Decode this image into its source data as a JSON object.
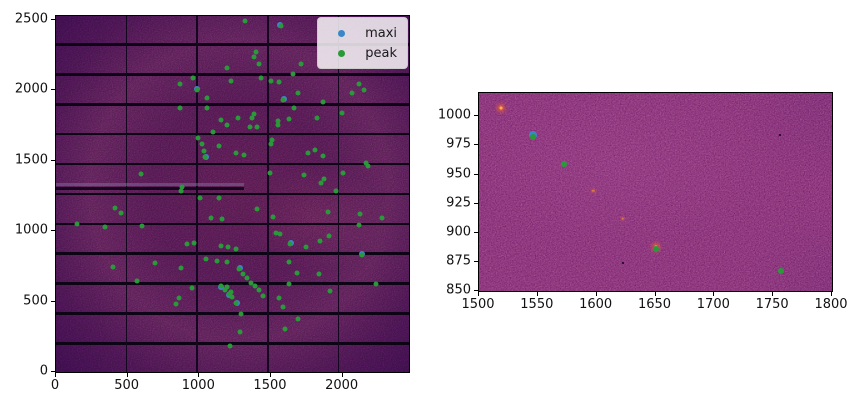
{
  "figure": {
    "background": "#ffffff"
  },
  "colors": {
    "maxi": "#3a87c8",
    "peak": "#2a9939",
    "detector_base": "#4b1161",
    "detector_glow": "#c65a92",
    "zoom_base": "#8c3173",
    "gap_line": "#0d0515",
    "hotspot": "#ffb347"
  },
  "chart_data": [
    {
      "id": "left",
      "type": "scatter",
      "title": "",
      "xlabel": "",
      "ylabel": "",
      "xlim": [
        0,
        2463
      ],
      "ylim": [
        0,
        2527
      ],
      "xticks": [
        0,
        500,
        1000,
        1500,
        2000
      ],
      "yticks": [
        0,
        500,
        1000,
        1500,
        2000,
        2500
      ],
      "grid": false,
      "aspect": "equal",
      "legend": {
        "position": "upper right",
        "entries": [
          {
            "label": "maxi",
            "color": "#3a87c8"
          },
          {
            "label": "peak",
            "color": "#2a9939"
          }
        ]
      },
      "image": {
        "description": "pilatus-detector-frame",
        "module_gaps": {
          "horizontal_y": [
            204,
            416,
            628,
            840,
            1052,
            1264,
            1476,
            1688,
            1900,
            2112,
            2324
          ],
          "vertical_x": [
            490,
            984,
            1478,
            1972
          ]
        },
        "dead_band": {
          "x": [
            0,
            1310
          ],
          "y": [
            1292,
            1345
          ]
        }
      },
      "series": [
        {
          "name": "maxi",
          "color": "#3a87c8",
          "marker_px": 6,
          "points": [
            [
              981,
              2006
            ],
            [
              1565,
              2462
            ],
            [
              2138,
              836
            ],
            [
              1261,
              490
            ],
            [
              1588,
              1938
            ],
            [
              1045,
              1527
            ],
            [
              1637,
              913
            ],
            [
              1282,
              737
            ],
            [
              1152,
              600
            ],
            [
              1208,
              546
            ]
          ]
        },
        {
          "name": "peak",
          "color": "#2a9939",
          "marker_px": 5,
          "points": [
            [
              863,
              2047
            ],
            [
              953,
              2089
            ],
            [
              981,
              2004
            ],
            [
              1190,
              2160
            ],
            [
              1224,
              2068
            ],
            [
              1057,
              1948
            ],
            [
              1057,
              1877
            ],
            [
              863,
              1877
            ],
            [
              1148,
              1786
            ],
            [
              1196,
              1750
            ],
            [
              1092,
              1701
            ],
            [
              988,
              1659
            ],
            [
              1022,
              1616
            ],
            [
              1134,
              1602
            ],
            [
              1036,
              1567
            ],
            [
              1043,
              1524
            ],
            [
              591,
              1404
            ],
            [
              876,
              1313
            ],
            [
              1322,
              2490
            ],
            [
              1572,
              2456
            ],
            [
              1398,
              2273
            ],
            [
              1384,
              2237
            ],
            [
              1419,
              2188
            ],
            [
              1711,
              2188
            ],
            [
              1433,
              2089
            ],
            [
              1655,
              2117
            ],
            [
              1503,
              2068
            ],
            [
              1558,
              2061
            ],
            [
              2115,
              2047
            ],
            [
              2149,
              2004
            ],
            [
              2066,
              1983
            ],
            [
              1690,
              1983
            ],
            [
              1586,
              1934
            ],
            [
              1864,
              1920
            ],
            [
              1663,
              1877
            ],
            [
              1384,
              1828
            ],
            [
              1273,
              1800
            ],
            [
              1370,
              1800
            ],
            [
              1551,
              1779
            ],
            [
              1628,
              1793
            ],
            [
              1823,
              1800
            ],
            [
              1996,
              1842
            ],
            [
              1405,
              1736
            ],
            [
              1356,
              1736
            ],
            [
              1551,
              1750
            ],
            [
              1509,
              1644
            ],
            [
              1503,
              1616
            ],
            [
              1809,
              1574
            ],
            [
              1760,
              1553
            ],
            [
              1864,
              1531
            ],
            [
              1315,
              1539
            ],
            [
              1259,
              1553
            ],
            [
              2163,
              1482
            ],
            [
              2177,
              1461
            ],
            [
              1496,
              1411
            ],
            [
              1732,
              1397
            ],
            [
              1871,
              1369
            ],
            [
              1850,
              1341
            ],
            [
              2004,
              1411
            ],
            [
              870,
              1284
            ],
            [
              1002,
              1235
            ],
            [
              1134,
              1235
            ],
            [
              410,
              1164
            ],
            [
              452,
              1129
            ],
            [
              146,
              1052
            ],
            [
              341,
              1030
            ],
            [
              598,
              1037
            ],
            [
              1078,
              1094
            ],
            [
              1155,
              1087
            ],
            [
              911,
              910
            ],
            [
              960,
              917
            ],
            [
              1148,
              896
            ],
            [
              1203,
              889
            ],
            [
              1050,
              805
            ],
            [
              1120,
              790
            ],
            [
              1196,
              783
            ],
            [
              397,
              748
            ],
            [
              689,
              776
            ],
            [
              870,
              741
            ],
            [
              563,
              649
            ],
            [
              946,
              593
            ],
            [
              1190,
              600
            ],
            [
              1224,
              565
            ],
            [
              856,
              522
            ],
            [
              835,
              480
            ],
            [
              1217,
              184
            ],
            [
              1955,
              1284
            ],
            [
              1405,
              1157
            ],
            [
              1899,
              1136
            ],
            [
              2122,
              1122
            ],
            [
              2275,
              1094
            ],
            [
              1516,
              1101
            ],
            [
              2115,
              1045
            ],
            [
              1537,
              988
            ],
            [
              1565,
              981
            ],
            [
              1635,
              910
            ],
            [
              1843,
              932
            ],
            [
              1906,
              967
            ],
            [
              1746,
              889
            ],
            [
              1259,
              875
            ],
            [
              2136,
              833
            ],
            [
              1628,
              783
            ],
            [
              1280,
              734
            ],
            [
              1308,
              699
            ],
            [
              1336,
              670
            ],
            [
              1684,
              706
            ],
            [
              1837,
              699
            ],
            [
              1628,
              628
            ],
            [
              2233,
              628
            ],
            [
              1363,
              635
            ],
            [
              1391,
              607
            ],
            [
              1419,
              579
            ],
            [
              1447,
              536
            ],
            [
              1558,
              522
            ],
            [
              1913,
              572
            ],
            [
              1259,
              487
            ],
            [
              1586,
              459
            ],
            [
              1294,
              409
            ],
            [
              1690,
              374
            ],
            [
              1287,
              282
            ],
            [
              1600,
              303
            ],
            [
              1148,
              607
            ],
            [
              1176,
              579
            ],
            [
              1204,
              551
            ],
            [
              1231,
              529
            ]
          ]
        }
      ]
    },
    {
      "id": "right",
      "type": "scatter",
      "title": "",
      "xlabel": "",
      "ylabel": "",
      "xlim": [
        1500,
        1800
      ],
      "ylim": [
        850,
        1020
      ],
      "xticks": [
        1500,
        1550,
        1600,
        1650,
        1700,
        1750,
        1800
      ],
      "yticks": [
        850,
        875,
        900,
        925,
        950,
        975,
        1000
      ],
      "grid": false,
      "aspect": "equal",
      "image": {
        "description": "detector-zoom-region",
        "hotspots_bright": [
          [
            1519,
            1007
          ],
          [
            1650,
            888
          ]
        ],
        "hotspots_faint": [
          [
            1597,
            936
          ],
          [
            1622,
            912
          ]
        ],
        "dark_specks": [
          [
            1756,
            984
          ],
          [
            1622,
            874
          ]
        ]
      },
      "series": [
        {
          "name": "maxi",
          "color": "#3a87c8",
          "marker_px": 8,
          "points": [
            [
              1546,
              984
            ]
          ]
        },
        {
          "name": "peak",
          "color": "#2a9939",
          "marker_px": 6,
          "points": [
            [
              1546,
              982
            ],
            [
              1572,
              959
            ],
            [
              1650,
              886
            ],
            [
              1757,
              867
            ]
          ]
        }
      ]
    }
  ]
}
